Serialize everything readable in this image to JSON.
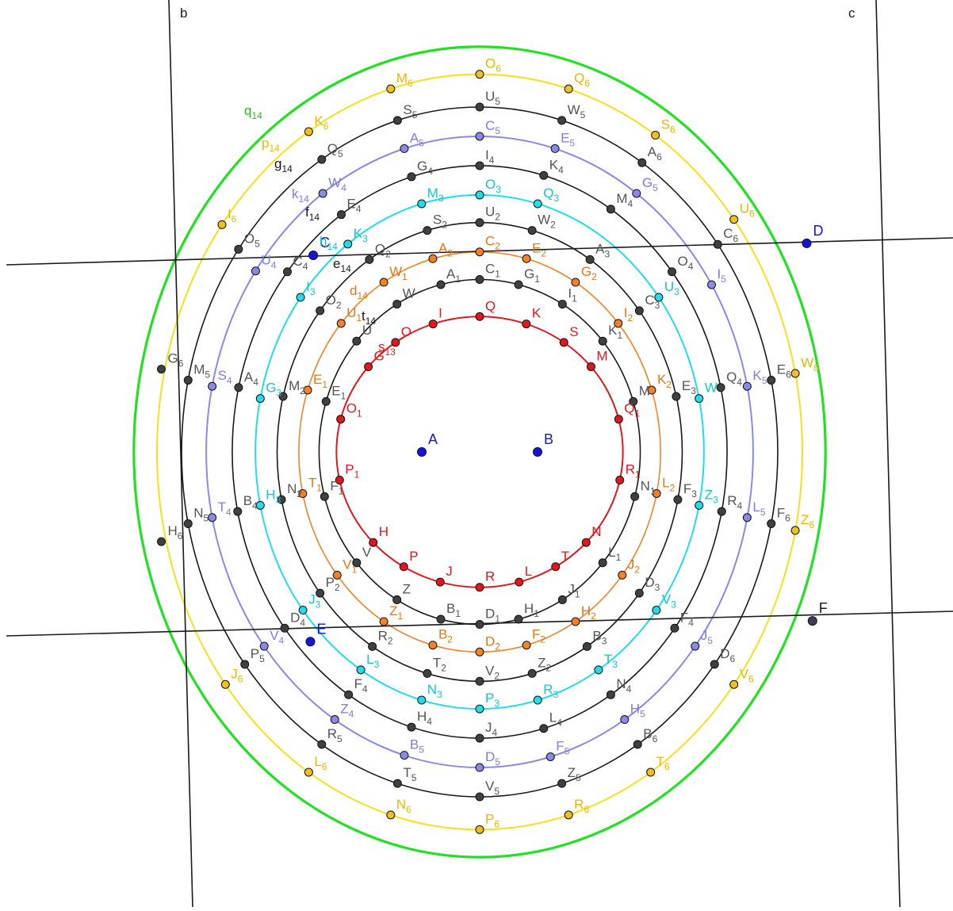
{
  "colors": {
    "red": "#e0181e",
    "black": "#1a1a1a",
    "orange": "#f0822a",
    "cyan": "#22dde8",
    "purple": "#8a8ae6",
    "yellow": "#f5e020",
    "green": "#22e022",
    "blue": "#1616cc",
    "point_dark": "#404040",
    "label_gray": "#555555",
    "label_orange": "#e07818",
    "label_cyan": "#12c4cc",
    "label_purple": "#7e7ee0",
    "label_gold": "#e8b800",
    "point_gold": "#f0c020",
    "label_green_q14": "#22bb22"
  },
  "foci": [
    {
      "name": "A",
      "x": -2,
      "y": 0
    },
    {
      "name": "B",
      "x": 2,
      "y": 0
    }
  ],
  "ellipses": [
    {
      "name": "red",
      "a": 4.95,
      "b": 3.925,
      "stroke": "red",
      "point_color": "red",
      "label_color": "red",
      "width": 2,
      "points": [
        {
          "t": 90,
          "n": "Q"
        },
        {
          "t": 71,
          "n": "K"
        },
        {
          "t": 109,
          "n": "I"
        },
        {
          "t": 54,
          "n": "S"
        },
        {
          "t": 126,
          "n": "O"
        },
        {
          "t": 39,
          "n": "M"
        },
        {
          "t": 141,
          "n": "G"
        },
        {
          "t": 14,
          "n": "Q",
          "s": "1"
        },
        {
          "t": 166,
          "n": "O",
          "s": "1"
        },
        {
          "t": -12,
          "n": "R",
          "s": "1"
        },
        {
          "t": -168,
          "n": "P",
          "s": "1"
        },
        {
          "t": -42,
          "n": "N"
        },
        {
          "t": -138,
          "n": "H"
        },
        {
          "t": -58,
          "n": "T"
        },
        {
          "t": -122,
          "n": "P"
        },
        {
          "t": -74,
          "n": "L"
        },
        {
          "t": -106,
          "n": "J"
        },
        {
          "t": -90,
          "n": "R"
        }
      ]
    },
    {
      "name": "black-1",
      "a": 5.55,
      "b": 5.0,
      "stroke": "black",
      "point_color": "dark",
      "label_color": "gray",
      "width": 1.6,
      "points": [
        {
          "t": 90,
          "n": "C",
          "s": "1"
        },
        {
          "t": 76,
          "n": "G",
          "s": "1"
        },
        {
          "t": 104,
          "n": "A",
          "s": "1"
        },
        {
          "t": 59,
          "n": "I",
          "s": "1"
        },
        {
          "t": 121,
          "n": "W"
        },
        {
          "t": 40,
          "n": "K",
          "s": "1"
        },
        {
          "t": 140,
          "n": "U"
        },
        {
          "t": 17,
          "n": "M"
        },
        {
          "t": 163,
          "n": "E",
          "s": "1"
        },
        {
          "t": -15,
          "n": "N",
          "s": "1"
        },
        {
          "t": -165,
          "n": "F",
          "s": "1"
        },
        {
          "t": -40,
          "n": "L",
          "s": "1"
        },
        {
          "t": -140,
          "n": "V"
        },
        {
          "t": -59,
          "n": "J",
          "s": "1"
        },
        {
          "t": -121,
          "n": "Z"
        },
        {
          "t": -76,
          "n": "H",
          "s": "1"
        },
        {
          "t": -104,
          "n": "B",
          "s": "1"
        },
        {
          "t": -90,
          "n": "D",
          "s": "1"
        }
      ]
    },
    {
      "name": "orange",
      "a": 6.25,
      "b": 5.8,
      "stroke": "orange",
      "point_color": "orange",
      "label_color": "orange",
      "width": 1.6,
      "points": [
        {
          "t": 90,
          "n": "C",
          "s": "2"
        },
        {
          "t": 75,
          "n": "E",
          "s": "2"
        },
        {
          "t": 105,
          "n": "A",
          "s": "2"
        },
        {
          "t": 58,
          "n": "G",
          "s": "2"
        },
        {
          "t": 122,
          "n": "W",
          "s": "1"
        },
        {
          "t": 40,
          "n": "I",
          "s": "2"
        },
        {
          "t": 140,
          "n": "U",
          "s": "1"
        },
        {
          "t": 18,
          "n": "K",
          "s": "2"
        },
        {
          "t": 162,
          "n": "E",
          "s": "1"
        },
        {
          "t": -12,
          "n": "L",
          "s": "2"
        },
        {
          "t": -168,
          "n": "T",
          "s": "1"
        },
        {
          "t": -38,
          "n": "J",
          "s": "2"
        },
        {
          "t": -142,
          "n": "V",
          "s": "1"
        },
        {
          "t": -58,
          "n": "H",
          "s": "2"
        },
        {
          "t": -122,
          "n": "Z",
          "s": "1"
        },
        {
          "t": -75,
          "n": "F",
          "s": "2"
        },
        {
          "t": -105,
          "n": "B",
          "s": "2"
        },
        {
          "t": -90,
          "n": "D",
          "s": "2"
        }
      ]
    },
    {
      "name": "black-2",
      "a": 7.0,
      "b": 6.65,
      "stroke": "black",
      "point_color": "dark",
      "label_color": "gray",
      "width": 1.6,
      "points": [
        {
          "t": 90,
          "n": "U",
          "s": "2"
        },
        {
          "t": 75,
          "n": "W",
          "s": "2"
        },
        {
          "t": 105,
          "n": "S",
          "s": "2"
        },
        {
          "t": 57,
          "n": "A",
          "s": "3"
        },
        {
          "t": 123,
          "n": "Q",
          "s": "2"
        },
        {
          "t": 38,
          "n": "C",
          "s": "3"
        },
        {
          "t": 142,
          "n": "O",
          "s": "2"
        },
        {
          "t": 14,
          "n": "E",
          "s": "3"
        },
        {
          "t": 166,
          "n": "M",
          "s": "2"
        },
        {
          "t": -12,
          "n": "F",
          "s": "3"
        },
        {
          "t": -168,
          "n": "N",
          "s": "2"
        },
        {
          "t": -38,
          "n": "D",
          "s": "3"
        },
        {
          "t": -142,
          "n": "P",
          "s": "2"
        },
        {
          "t": -58,
          "n": "B",
          "s": "3"
        },
        {
          "t": -122,
          "n": "R",
          "s": "2"
        },
        {
          "t": -75,
          "n": "Z",
          "s": "2"
        },
        {
          "t": -105,
          "n": "T",
          "s": "2"
        },
        {
          "t": -90,
          "n": "V",
          "s": "2"
        }
      ]
    },
    {
      "name": "cyan",
      "a": 7.75,
      "b": 7.45,
      "stroke": "cyan",
      "point_color": "cyan",
      "label_color": "cyan",
      "width": 2,
      "points": [
        {
          "t": 90,
          "n": "O",
          "s": "3"
        },
        {
          "t": 75,
          "n": "Q",
          "s": "3"
        },
        {
          "t": 105,
          "n": "M",
          "s": "3"
        },
        {
          "t": 126,
          "n": "K",
          "s": "3"
        },
        {
          "t": 37,
          "n": "U",
          "s": "3"
        },
        {
          "t": 143,
          "n": "I",
          "s": "3"
        },
        {
          "t": 12,
          "n": "W"
        },
        {
          "t": 168,
          "n": "G",
          "s": "3"
        },
        {
          "t": -12,
          "n": "Z",
          "s": "3"
        },
        {
          "t": -168,
          "n": "H",
          "s": "3"
        },
        {
          "t": -38,
          "n": "V",
          "s": "3"
        },
        {
          "t": -142,
          "n": "J",
          "s": "3"
        },
        {
          "t": -58,
          "n": "T",
          "s": "3"
        },
        {
          "t": -122,
          "n": "L",
          "s": "3"
        },
        {
          "t": -75,
          "n": "R",
          "s": "3"
        },
        {
          "t": -105,
          "n": "N",
          "s": "3"
        },
        {
          "t": -90,
          "n": "P",
          "s": "3"
        }
      ]
    },
    {
      "name": "black-3",
      "a": 8.55,
      "b": 8.3,
      "stroke": "black",
      "point_color": "dark",
      "label_color": "gray",
      "width": 1.6,
      "points": [
        {
          "t": 90,
          "n": "I",
          "s": "4"
        },
        {
          "t": 75,
          "n": "K",
          "s": "4"
        },
        {
          "t": 106,
          "n": "G",
          "s": "4"
        },
        {
          "t": 58,
          "n": "M",
          "s": "4"
        },
        {
          "t": 124,
          "n": "E",
          "s": "4"
        },
        {
          "t": 39,
          "n": "O",
          "s": "4"
        },
        {
          "t": 141,
          "n": "C",
          "s": "4"
        },
        {
          "t": 13,
          "n": "Q",
          "s": "4"
        },
        {
          "t": 167,
          "n": "A",
          "s": "4"
        },
        {
          "t": -12,
          "n": "R",
          "s": "4"
        },
        {
          "t": -168,
          "n": "B",
          "s": "4"
        },
        {
          "t": -38,
          "n": "F",
          "s": "4"
        },
        {
          "t": -142,
          "n": "D",
          "s": "4"
        },
        {
          "t": -58,
          "n": "N",
          "s": "4"
        },
        {
          "t": -122,
          "n": "F",
          "s": "4"
        },
        {
          "t": -75,
          "n": "L",
          "s": "4"
        },
        {
          "t": -106,
          "n": "H",
          "s": "4"
        },
        {
          "t": -90,
          "n": "J",
          "s": "4"
        }
      ]
    },
    {
      "name": "purple",
      "a": 9.45,
      "b": 9.15,
      "stroke": "purple",
      "point_color": "purple",
      "label_color": "purple",
      "width": 2,
      "points": [
        {
          "t": 90,
          "n": "C",
          "s": "5"
        },
        {
          "t": 74,
          "n": "E",
          "s": "5"
        },
        {
          "t": 106,
          "n": "A",
          "s": "5"
        },
        {
          "t": 55,
          "n": "G",
          "s": "5"
        },
        {
          "t": 125,
          "n": "W",
          "s": "4"
        },
        {
          "t": 32,
          "n": "I",
          "s": "5"
        },
        {
          "t": 145,
          "n": "U",
          "s": "4"
        },
        {
          "t": 12,
          "n": "K",
          "s": "5"
        },
        {
          "t": 168,
          "n": "S",
          "s": "4"
        },
        {
          "t": -12,
          "n": "L",
          "s": "5"
        },
        {
          "t": -168,
          "n": "T",
          "s": "4"
        },
        {
          "t": -38,
          "n": "J",
          "s": "5"
        },
        {
          "t": -142,
          "n": "V",
          "s": "4"
        },
        {
          "t": -58,
          "n": "H",
          "s": "5"
        },
        {
          "t": -122,
          "n": "Z",
          "s": "4"
        },
        {
          "t": -75,
          "n": "F",
          "s": "5"
        },
        {
          "t": -106,
          "n": "B",
          "s": "5"
        },
        {
          "t": -90,
          "n": "D",
          "s": "5"
        }
      ]
    },
    {
      "name": "black-4",
      "a": 10.3,
      "b": 10.0,
      "stroke": "black",
      "point_color": "dark",
      "label_color": "gray",
      "width": 1.6,
      "points": [
        {
          "t": 90,
          "n": "U",
          "s": "5"
        },
        {
          "t": 74,
          "n": "W",
          "s": "5"
        },
        {
          "t": 106,
          "n": "S",
          "s": "5"
        },
        {
          "t": 57,
          "n": "A",
          "s": "6"
        },
        {
          "t": 122,
          "n": "Q",
          "s": "5"
        },
        {
          "t": 37,
          "n": "C",
          "s": "6"
        },
        {
          "t": 144,
          "n": "O",
          "s": "5"
        },
        {
          "t": 12,
          "n": "E",
          "s": "6"
        },
        {
          "t": 168,
          "n": "M",
          "s": "5"
        },
        {
          "t": -12,
          "n": "F",
          "s": "6"
        },
        {
          "t": -168,
          "n": "N",
          "s": "5"
        },
        {
          "t": -38,
          "n": "D",
          "s": "6"
        },
        {
          "t": -142,
          "n": "P",
          "s": "5"
        },
        {
          "t": -58,
          "n": "B",
          "s": "6"
        },
        {
          "t": -122,
          "n": "R",
          "s": "5"
        },
        {
          "t": -74,
          "n": "Z",
          "s": "5"
        },
        {
          "t": -106,
          "n": "T",
          "s": "5"
        },
        {
          "t": -90,
          "n": "V",
          "s": "5"
        }
      ]
    },
    {
      "name": "yellow",
      "a": 11.15,
      "b": 10.95,
      "stroke": "yellow",
      "point_color": "gold",
      "label_color": "gold",
      "width": 2,
      "points": [
        {
          "t": 90,
          "n": "O",
          "s": "6"
        },
        {
          "t": 74,
          "n": "Q",
          "s": "6"
        },
        {
          "t": 106,
          "n": "M",
          "s": "6"
        },
        {
          "t": 57,
          "n": "S",
          "s": "6"
        },
        {
          "t": 122,
          "n": "K",
          "s": "6"
        },
        {
          "t": 38,
          "n": "U",
          "s": "6"
        },
        {
          "t": 143,
          "n": "I",
          "s": "6"
        },
        {
          "t": 12,
          "n": "W",
          "s": "6"
        },
        {
          "t": -12,
          "n": "Z",
          "s": "6"
        },
        {
          "t": -38,
          "n": "V",
          "s": "6"
        },
        {
          "t": -142,
          "n": "J",
          "s": "6"
        },
        {
          "t": -58,
          "n": "T",
          "s": "6"
        },
        {
          "t": -122,
          "n": "L",
          "s": "6"
        },
        {
          "t": -74,
          "n": "R",
          "s": "6"
        },
        {
          "t": -106,
          "n": "N",
          "s": "6"
        },
        {
          "t": -90,
          "n": "P",
          "s": "6"
        }
      ]
    },
    {
      "name": "green",
      "a": 11.95,
      "b": 11.75,
      "stroke": "green",
      "width": 3.2,
      "points": []
    }
  ],
  "extra_points": [
    {
      "n": "G",
      "s": "6",
      "x": -11.0,
      "y": 2.4,
      "color": "dark",
      "label_color": "gray"
    },
    {
      "n": "H",
      "s": "6",
      "x": -11.0,
      "y": -2.6,
      "color": "dark",
      "label_color": "gray"
    }
  ],
  "blue_points": [
    {
      "n": "C",
      "x": -5.75,
      "y": 5.7
    },
    {
      "n": "D",
      "x": 11.3,
      "y": 6.05
    },
    {
      "n": "E",
      "x": -5.85,
      "y": -5.5
    },
    {
      "n": "F",
      "x": 11.5,
      "y": -4.9,
      "color": "dark"
    }
  ],
  "lines": [
    {
      "name": "b",
      "from": "line-b-top",
      "to": "line-b-bottom"
    },
    {
      "name": "c",
      "from": "line-c-top",
      "to": "line-c-bottom"
    },
    {
      "name": "upper",
      "from": "line-upper-left",
      "to": "line-upper-right"
    },
    {
      "name": "lower",
      "from": "line-lower-left",
      "to": "line-lower-right"
    }
  ],
  "line_labels": [
    {
      "text": "b"
    },
    {
      "text": "c"
    }
  ],
  "trace_labels": [
    {
      "n": "q",
      "s": "14",
      "color": "label_green_q14"
    },
    {
      "n": "p",
      "s": "14",
      "color": "label_gold"
    },
    {
      "n": "g",
      "s": "14",
      "color": "black"
    },
    {
      "n": "k",
      "s": "14",
      "color": "label_purple"
    },
    {
      "n": "f",
      "s": "14",
      "color": "black"
    },
    {
      "n": "h",
      "s": "14",
      "color": "label_cyan"
    },
    {
      "n": "e",
      "s": "14",
      "color": "black"
    },
    {
      "n": "d",
      "s": "14",
      "color": "label_orange"
    },
    {
      "n": "t",
      "s": "14",
      "color": "black"
    },
    {
      "n": "s",
      "s": "13",
      "color": "red"
    }
  ]
}
